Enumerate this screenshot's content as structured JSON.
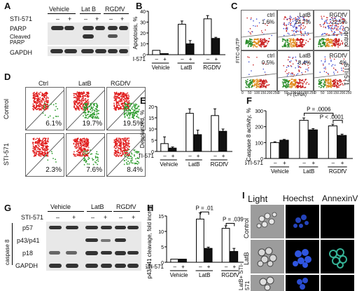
{
  "panels": {
    "A": "A",
    "B": "B",
    "C": "C",
    "D": "D",
    "E": "E",
    "F": "F",
    "G": "G",
    "H": "H",
    "I": "I"
  },
  "common": {
    "sti": "STI-571",
    "minus": "–",
    "plus": "+",
    "vehicle": "Vehicle",
    "latb": "Lat B",
    "latb2": "LatB",
    "rgdfv": "RGDfV",
    "ctrl": "Ctrl",
    "ctrl_lc": "ctrl",
    "control": "Control"
  },
  "panelA": {
    "parp": "PARP",
    "cleaved": "Cleaved",
    "parp2": "PARP",
    "gapdh": "GAPDH"
  },
  "panelB": {
    "ylabel": "Apoptosis, %"
  },
  "panelC": {
    "ylabel": "FITC-dUTP",
    "xlabel": "PI (DNA)",
    "row_labels": [
      "Control",
      "STI-571"
    ],
    "col_labels": [
      "ctrl",
      "LatB",
      "RGDfV"
    ],
    "values": [
      [
        "1.6%",
        "24.7%",
        "22.5%"
      ],
      [
        "0.5%",
        "8.4%",
        "4%"
      ]
    ],
    "ticks": [
      "0",
      "50",
      "100",
      "150",
      "200",
      "250"
    ]
  },
  "panelD": {
    "col_labels": [
      "Ctrl",
      "LatB",
      "RGDfV"
    ],
    "row_labels": [
      "Control",
      "STI-571"
    ],
    "values": [
      [
        "6.1%",
        "19.7%",
        "19.5%"
      ],
      [
        "2.3%",
        "7.6%",
        "8.4%"
      ]
    ]
  },
  "panelE": {
    "ylabel": "Depolarized, %"
  },
  "panelF": {
    "ylabel": "Caspase 8 activity, %",
    "p1": "P = .0006",
    "p2": "P < .0001"
  },
  "panelG": {
    "side": "caspase 8",
    "p57": "p57",
    "p43": "p43/p41",
    "p18": "p18",
    "gapdh": "GAPDH"
  },
  "panelH": {
    "ylabel": "p43/p41 cleavage, fold increase",
    "p1": "P = .01",
    "p2": "P = .039"
  },
  "panelI": {
    "cols": [
      "Light",
      "Hoechst",
      "AnnexinV"
    ],
    "rows": [
      "Control",
      "LatB",
      "LatB+ STI-571"
    ]
  },
  "chart_data": [
    {
      "type": "bar",
      "panel": "B",
      "ylabel": "Apoptosis, %",
      "categories": [
        "Vehicle −",
        "Vehicle +",
        "LatB −",
        "LatB +",
        "RGDfV −",
        "RGDfV +"
      ],
      "values": [
        4,
        1,
        28,
        10,
        33,
        15
      ],
      "errors": [
        0,
        0,
        3,
        3,
        3,
        1
      ],
      "ylim": [
        0,
        40
      ]
    },
    {
      "type": "bar",
      "panel": "E",
      "ylabel": "Depolarized, %",
      "categories": [
        "Vehicle −",
        "Vehicle +",
        "LatB −",
        "LatB +",
        "RGDfV −",
        "RGDfV +"
      ],
      "values": [
        3.5,
        1.5,
        17,
        7.5,
        16,
        9
      ],
      "errors": [
        3,
        0.5,
        2,
        2,
        3,
        1
      ],
      "ylim": [
        0,
        20
      ]
    },
    {
      "type": "bar",
      "panel": "F",
      "ylabel": "Caspase 8 activity, %",
      "categories": [
        "Vehicle −",
        "Vehicle +",
        "LatB −",
        "LatB +",
        "RGDfV −",
        "RGDfV +"
      ],
      "values": [
        100,
        115,
        240,
        180,
        205,
        145
      ],
      "errors": [
        5,
        5,
        15,
        8,
        10,
        8
      ],
      "ylim": [
        0,
        300
      ]
    },
    {
      "type": "bar",
      "panel": "H",
      "ylabel": "p43/p41 cleavage, fold increase",
      "categories": [
        "Vehicle −",
        "Vehicle +",
        "LatB −",
        "LatB +",
        "RGDfV −",
        "RGDfV +"
      ],
      "values": [
        1,
        1,
        14,
        4.5,
        11,
        3.5
      ],
      "errors": [
        0,
        0,
        2,
        0.4,
        0.8,
        1
      ],
      "ylim": [
        0,
        15
      ]
    }
  ]
}
